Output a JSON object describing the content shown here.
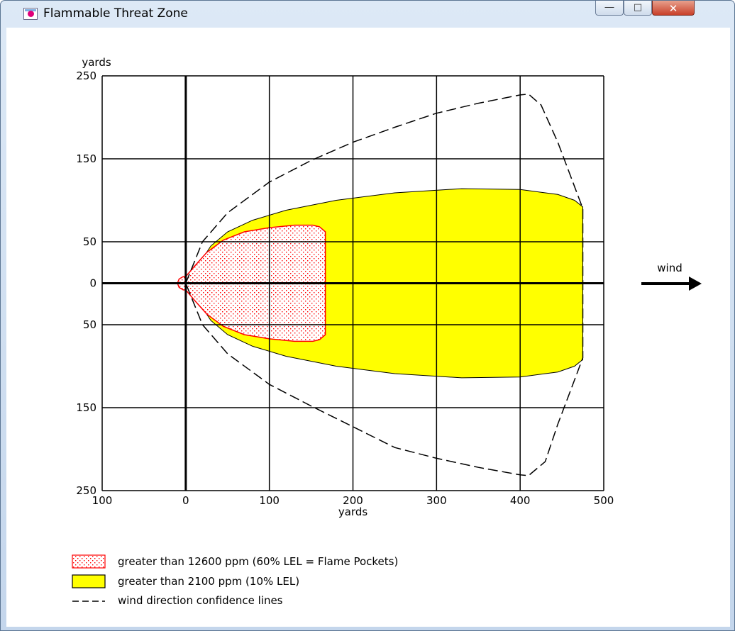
{
  "window": {
    "title": "Flammable Threat Zone",
    "icon": "app-window-icon",
    "controls": [
      "minimize-icon",
      "maximize-icon",
      "close-icon"
    ]
  },
  "chart_data": {
    "type": "area",
    "xlabel": "yards",
    "ylabel": "yards",
    "xlim": [
      -100,
      500
    ],
    "ylim": [
      -250,
      250
    ],
    "x_ticks": [
      -100,
      0,
      100,
      200,
      300,
      400,
      500
    ],
    "x_tick_labels": [
      "100",
      "0",
      "100",
      "200",
      "300",
      "400",
      "500"
    ],
    "y_ticks": [
      250,
      150,
      50,
      0,
      -50,
      -150,
      -250
    ],
    "y_tick_labels": [
      "250",
      "150",
      "50",
      "0",
      "50",
      "150",
      "250"
    ],
    "grid": true,
    "wind_label": "wind",
    "series": [
      {
        "name": "greater than 2100 ppm (10% LEL)",
        "color": "#ffff00",
        "stroke": "#000000",
        "fill_pattern": "solid",
        "upper": [
          [
            0,
            0
          ],
          [
            5,
            7
          ],
          [
            15,
            22
          ],
          [
            30,
            45
          ],
          [
            50,
            62
          ],
          [
            80,
            76
          ],
          [
            120,
            88
          ],
          [
            180,
            100
          ],
          [
            250,
            109
          ],
          [
            330,
            114
          ],
          [
            400,
            113
          ],
          [
            445,
            107
          ],
          [
            465,
            100
          ],
          [
            475,
            92
          ],
          [
            475,
            0
          ]
        ],
        "lower": [
          [
            0,
            0
          ],
          [
            5,
            -7
          ],
          [
            15,
            -22
          ],
          [
            30,
            -45
          ],
          [
            50,
            -62
          ],
          [
            80,
            -76
          ],
          [
            120,
            -88
          ],
          [
            180,
            -100
          ],
          [
            250,
            -109
          ],
          [
            330,
            -114
          ],
          [
            400,
            -113
          ],
          [
            445,
            -107
          ],
          [
            465,
            -100
          ],
          [
            475,
            -92
          ],
          [
            475,
            0
          ]
        ]
      },
      {
        "name": "greater than 12600 ppm (60% LEL = Flame Pockets)",
        "color": "#ffe0e0",
        "stroke": "#ff0000",
        "fill_pattern": "dotted",
        "upper": [
          [
            -10,
            0
          ],
          [
            -8,
            5
          ],
          [
            -3,
            8
          ],
          [
            0,
            8
          ],
          [
            10,
            20
          ],
          [
            25,
            37
          ],
          [
            45,
            52
          ],
          [
            70,
            62
          ],
          [
            100,
            67
          ],
          [
            130,
            70
          ],
          [
            152,
            70
          ],
          [
            160,
            68
          ],
          [
            167,
            62
          ],
          [
            167,
            0
          ]
        ],
        "lower": [
          [
            -10,
            0
          ],
          [
            -8,
            -5
          ],
          [
            -3,
            -8
          ],
          [
            0,
            -8
          ],
          [
            10,
            -20
          ],
          [
            25,
            -37
          ],
          [
            45,
            -52
          ],
          [
            70,
            -62
          ],
          [
            100,
            -67
          ],
          [
            130,
            -70
          ],
          [
            152,
            -70
          ],
          [
            160,
            -68
          ],
          [
            167,
            -62
          ],
          [
            167,
            0
          ]
        ]
      },
      {
        "name": "wind direction confidence lines",
        "color": "#000000",
        "line_style": "dashed",
        "points": [
          [
            0,
            0
          ],
          [
            20,
            50
          ],
          [
            50,
            85
          ],
          [
            100,
            122
          ],
          [
            150,
            148
          ],
          [
            200,
            170
          ],
          [
            250,
            188
          ],
          [
            300,
            205
          ],
          [
            350,
            217
          ],
          [
            400,
            227
          ],
          [
            410,
            228
          ],
          [
            425,
            215
          ],
          [
            445,
            170
          ],
          [
            460,
            130
          ],
          [
            475,
            90
          ],
          [
            475,
            -90
          ],
          [
            460,
            -130
          ],
          [
            445,
            -170
          ],
          [
            430,
            -215
          ],
          [
            410,
            -232
          ],
          [
            400,
            -231
          ],
          [
            350,
            -222
          ],
          [
            300,
            -211
          ],
          [
            250,
            -198
          ],
          [
            200,
            -173
          ],
          [
            150,
            -148
          ],
          [
            100,
            -122
          ],
          [
            50,
            -85
          ],
          [
            20,
            -50
          ],
          [
            0,
            0
          ]
        ]
      }
    ]
  },
  "legend": [
    {
      "label": "greater than 12600 ppm (60% LEL = Flame Pockets)",
      "icon": "red-dotted-swatch"
    },
    {
      "label": "greater than 2100 ppm (10% LEL)",
      "icon": "yellow-swatch"
    },
    {
      "label": "wind direction confidence lines",
      "icon": "dashed-line-swatch"
    }
  ]
}
